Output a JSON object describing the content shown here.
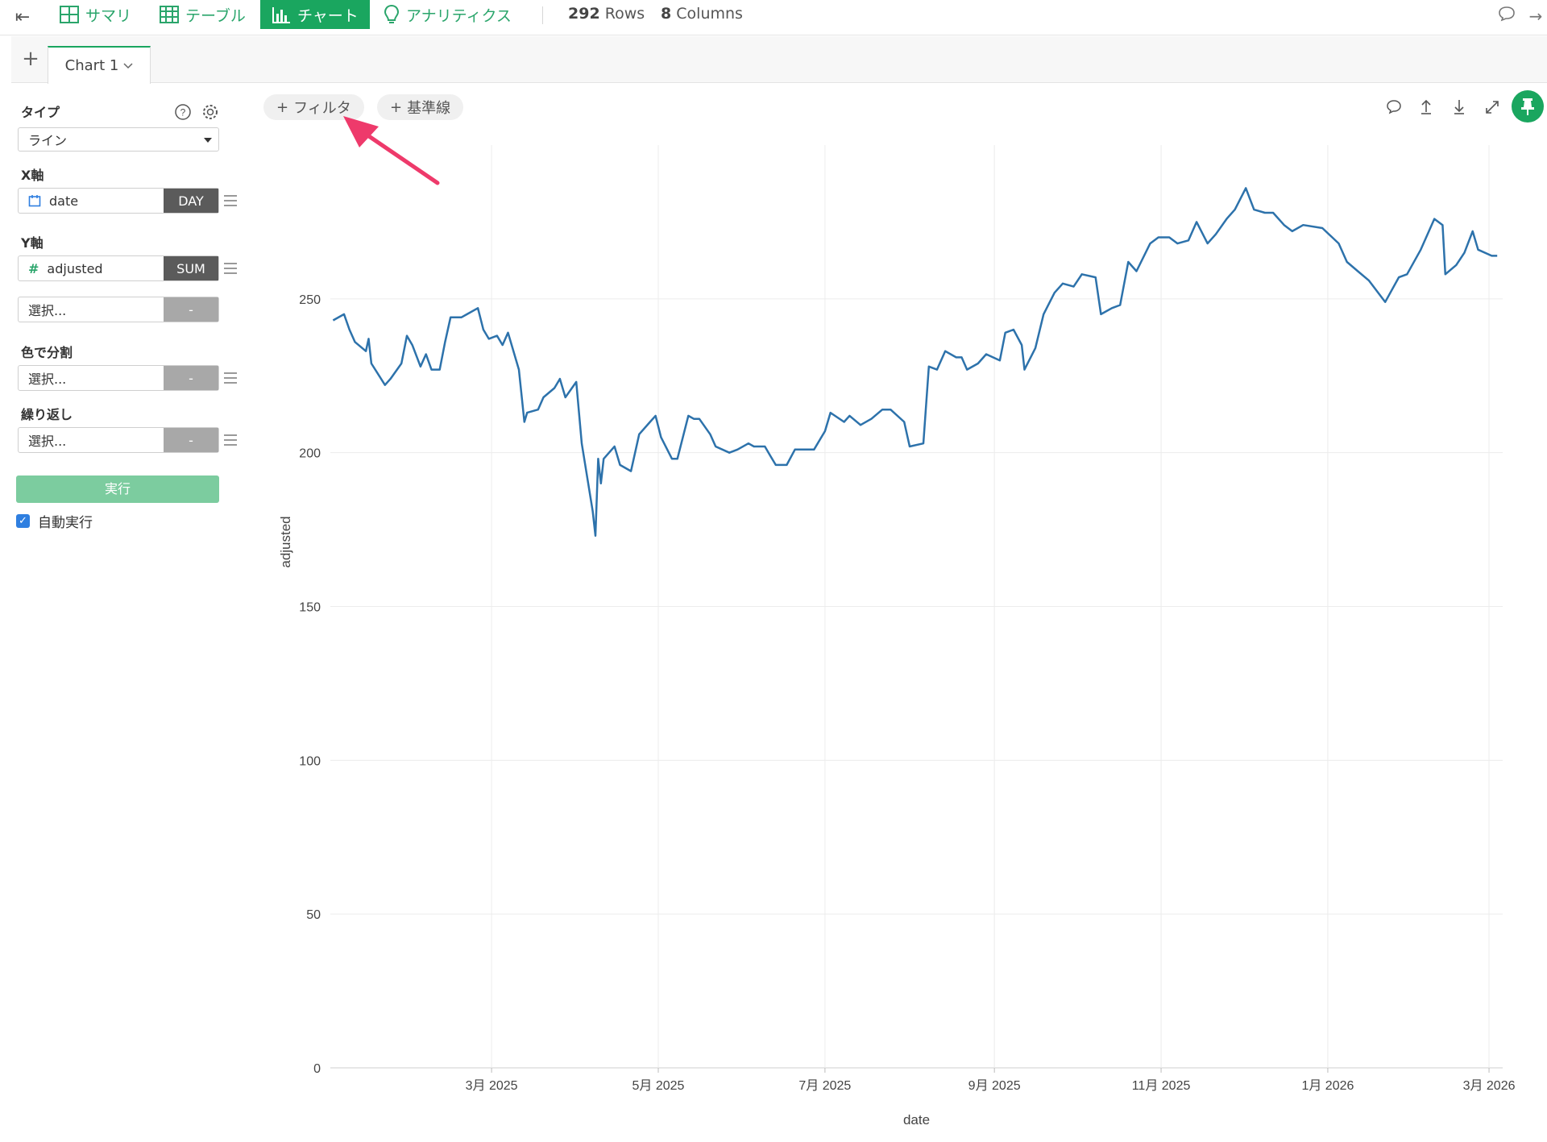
{
  "toolbar": {
    "tabs": [
      {
        "label": "サマリ",
        "icon": "grid-icon"
      },
      {
        "label": "テーブル",
        "icon": "table-icon"
      },
      {
        "label": "チャート",
        "icon": "bar-chart-icon",
        "active": true
      },
      {
        "label": "アナリティクス",
        "icon": "lightbulb-icon"
      }
    ],
    "rows_count": "292",
    "rows_label": "Rows",
    "cols_count": "8",
    "cols_label": "Columns"
  },
  "chart_tab": {
    "label": "Chart 1"
  },
  "panel": {
    "type_label": "タイプ",
    "type_value": "ライン",
    "x_label": "X軸",
    "x_field": "date",
    "x_agg": "DAY",
    "y_label": "Y軸",
    "y_field": "adjusted",
    "y_agg": "SUM",
    "y2_placeholder": "選択...",
    "y2_agg": "-",
    "color_label": "色で分割",
    "color_placeholder": "選択...",
    "color_agg": "-",
    "repeat_label": "繰り返し",
    "repeat_placeholder": "選択...",
    "repeat_agg": "-",
    "run_label": "実行",
    "auto_run_label": "自動実行",
    "auto_run_checked": true
  },
  "chart_actions": {
    "filter_label": "フィルタ",
    "refline_label": "基準線"
  },
  "accent_color": "#1aa65f",
  "chart_data": {
    "type": "line",
    "xlabel": "date",
    "ylabel": "adjusted",
    "ylim": [
      0,
      300
    ],
    "yticks": [
      0,
      50,
      100,
      150,
      200,
      250
    ],
    "xlim": [
      "2025-01-01",
      "2026-03-06"
    ],
    "xticks": [
      {
        "date": "2025-03-01",
        "label": "3月 2025"
      },
      {
        "date": "2025-05-01",
        "label": "5月 2025"
      },
      {
        "date": "2025-07-01",
        "label": "7月 2025"
      },
      {
        "date": "2025-09-01",
        "label": "9月 2025"
      },
      {
        "date": "2025-11-01",
        "label": "11月 2025"
      },
      {
        "date": "2026-01-01",
        "label": "1月 2026"
      },
      {
        "date": "2026-03-01",
        "label": "3月 2026"
      }
    ],
    "grid": true,
    "line_color": "#2d72ab",
    "series": [
      {
        "points": [
          [
            "2025-01-02",
            243
          ],
          [
            "2025-01-06",
            245
          ],
          [
            "2025-01-08",
            240
          ],
          [
            "2025-01-10",
            236
          ],
          [
            "2025-01-14",
            233
          ],
          [
            "2025-01-15",
            237
          ],
          [
            "2025-01-16",
            229
          ],
          [
            "2025-01-21",
            222
          ],
          [
            "2025-01-23",
            224
          ],
          [
            "2025-01-27",
            229
          ],
          [
            "2025-01-29",
            238
          ],
          [
            "2025-01-31",
            235
          ],
          [
            "2025-02-03",
            228
          ],
          [
            "2025-02-05",
            232
          ],
          [
            "2025-02-07",
            227
          ],
          [
            "2025-02-10",
            227
          ],
          [
            "2025-02-12",
            236
          ],
          [
            "2025-02-14",
            244
          ],
          [
            "2025-02-18",
            244
          ],
          [
            "2025-02-20",
            245
          ],
          [
            "2025-02-24",
            247
          ],
          [
            "2025-02-26",
            240
          ],
          [
            "2025-02-28",
            237
          ],
          [
            "2025-03-03",
            238
          ],
          [
            "2025-03-05",
            235
          ],
          [
            "2025-03-07",
            239
          ],
          [
            "2025-03-11",
            227
          ],
          [
            "2025-03-13",
            210
          ],
          [
            "2025-03-14",
            213
          ],
          [
            "2025-03-18",
            214
          ],
          [
            "2025-03-20",
            218
          ],
          [
            "2025-03-24",
            221
          ],
          [
            "2025-03-26",
            224
          ],
          [
            "2025-03-28",
            218
          ],
          [
            "2025-04-01",
            223
          ],
          [
            "2025-04-03",
            203
          ],
          [
            "2025-04-07",
            181
          ],
          [
            "2025-04-08",
            173
          ],
          [
            "2025-04-09",
            198
          ],
          [
            "2025-04-10",
            190
          ],
          [
            "2025-04-11",
            198
          ],
          [
            "2025-04-15",
            202
          ],
          [
            "2025-04-17",
            196
          ],
          [
            "2025-04-21",
            194
          ],
          [
            "2025-04-24",
            206
          ],
          [
            "2025-04-28",
            210
          ],
          [
            "2025-04-30",
            212
          ],
          [
            "2025-05-02",
            205
          ],
          [
            "2025-05-06",
            198
          ],
          [
            "2025-05-08",
            198
          ],
          [
            "2025-05-12",
            212
          ],
          [
            "2025-05-14",
            211
          ],
          [
            "2025-05-16",
            211
          ],
          [
            "2025-05-20",
            206
          ],
          [
            "2025-05-22",
            202
          ],
          [
            "2025-05-27",
            200
          ],
          [
            "2025-05-30",
            201
          ],
          [
            "2025-06-03",
            203
          ],
          [
            "2025-06-05",
            202
          ],
          [
            "2025-06-09",
            202
          ],
          [
            "2025-06-11",
            199
          ],
          [
            "2025-06-13",
            196
          ],
          [
            "2025-06-17",
            196
          ],
          [
            "2025-06-20",
            201
          ],
          [
            "2025-06-24",
            201
          ],
          [
            "2025-06-27",
            201
          ],
          [
            "2025-07-01",
            207
          ],
          [
            "2025-07-03",
            213
          ],
          [
            "2025-07-08",
            210
          ],
          [
            "2025-07-10",
            212
          ],
          [
            "2025-07-14",
            209
          ],
          [
            "2025-07-18",
            211
          ],
          [
            "2025-07-22",
            214
          ],
          [
            "2025-07-25",
            214
          ],
          [
            "2025-07-30",
            210
          ],
          [
            "2025-08-01",
            202
          ],
          [
            "2025-08-06",
            203
          ],
          [
            "2025-08-08",
            228
          ],
          [
            "2025-08-11",
            227
          ],
          [
            "2025-08-14",
            233
          ],
          [
            "2025-08-18",
            231
          ],
          [
            "2025-08-20",
            231
          ],
          [
            "2025-08-22",
            227
          ],
          [
            "2025-08-26",
            229
          ],
          [
            "2025-08-29",
            232
          ],
          [
            "2025-09-03",
            230
          ],
          [
            "2025-09-05",
            239
          ],
          [
            "2025-09-08",
            240
          ],
          [
            "2025-09-11",
            235
          ],
          [
            "2025-09-12",
            227
          ],
          [
            "2025-09-16",
            234
          ],
          [
            "2025-09-19",
            245
          ],
          [
            "2025-09-23",
            252
          ],
          [
            "2025-09-26",
            255
          ],
          [
            "2025-09-30",
            254
          ],
          [
            "2025-10-03",
            258
          ],
          [
            "2025-10-08",
            257
          ],
          [
            "2025-10-10",
            245
          ],
          [
            "2025-10-14",
            247
          ],
          [
            "2025-10-17",
            248
          ],
          [
            "2025-10-20",
            262
          ],
          [
            "2025-10-23",
            259
          ],
          [
            "2025-10-28",
            268
          ],
          [
            "2025-10-31",
            270
          ],
          [
            "2025-11-04",
            270
          ],
          [
            "2025-11-07",
            268
          ],
          [
            "2025-11-11",
            269
          ],
          [
            "2025-11-14",
            275
          ],
          [
            "2025-11-18",
            268
          ],
          [
            "2025-11-21",
            271
          ],
          [
            "2025-11-25",
            276
          ],
          [
            "2025-11-28",
            279
          ],
          [
            "2025-12-02",
            286
          ],
          [
            "2025-12-05",
            279
          ],
          [
            "2025-12-09",
            278
          ],
          [
            "2025-12-12",
            278
          ],
          [
            "2025-12-16",
            274
          ],
          [
            "2025-12-19",
            272
          ],
          [
            "2025-12-23",
            274
          ],
          [
            "2025-12-30",
            273
          ],
          [
            "2026-01-05",
            268
          ],
          [
            "2026-01-08",
            262
          ],
          [
            "2026-01-12",
            259
          ],
          [
            "2026-01-16",
            256
          ],
          [
            "2026-01-22",
            249
          ],
          [
            "2026-01-27",
            257
          ],
          [
            "2026-01-30",
            258
          ],
          [
            "2026-02-04",
            266
          ],
          [
            "2026-02-09",
            276
          ],
          [
            "2026-02-12",
            274
          ],
          [
            "2026-02-13",
            258
          ],
          [
            "2026-02-17",
            261
          ],
          [
            "2026-02-20",
            265
          ],
          [
            "2026-02-23",
            272
          ],
          [
            "2026-02-25",
            266
          ],
          [
            "2026-03-02",
            264
          ],
          [
            "2026-03-04",
            264
          ]
        ]
      }
    ]
  }
}
